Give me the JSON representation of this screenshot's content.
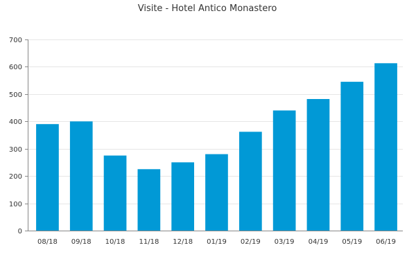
{
  "chart_data": {
    "type": "bar",
    "title": "Visite - Hotel Antico Monastero",
    "xlabel": "",
    "ylabel": "",
    "categories": [
      "08/18",
      "09/18",
      "10/18",
      "11/18",
      "12/18",
      "01/19",
      "02/19",
      "03/19",
      "04/19",
      "05/19",
      "06/19"
    ],
    "values": [
      390,
      400,
      275,
      225,
      250,
      280,
      362,
      440,
      482,
      545,
      613
    ],
    "ylim": [
      0,
      700
    ],
    "yticks": [
      0,
      100,
      200,
      300,
      400,
      500,
      600,
      700
    ],
    "grid": true,
    "legend": "none",
    "bar_color": "#0199d6"
  }
}
